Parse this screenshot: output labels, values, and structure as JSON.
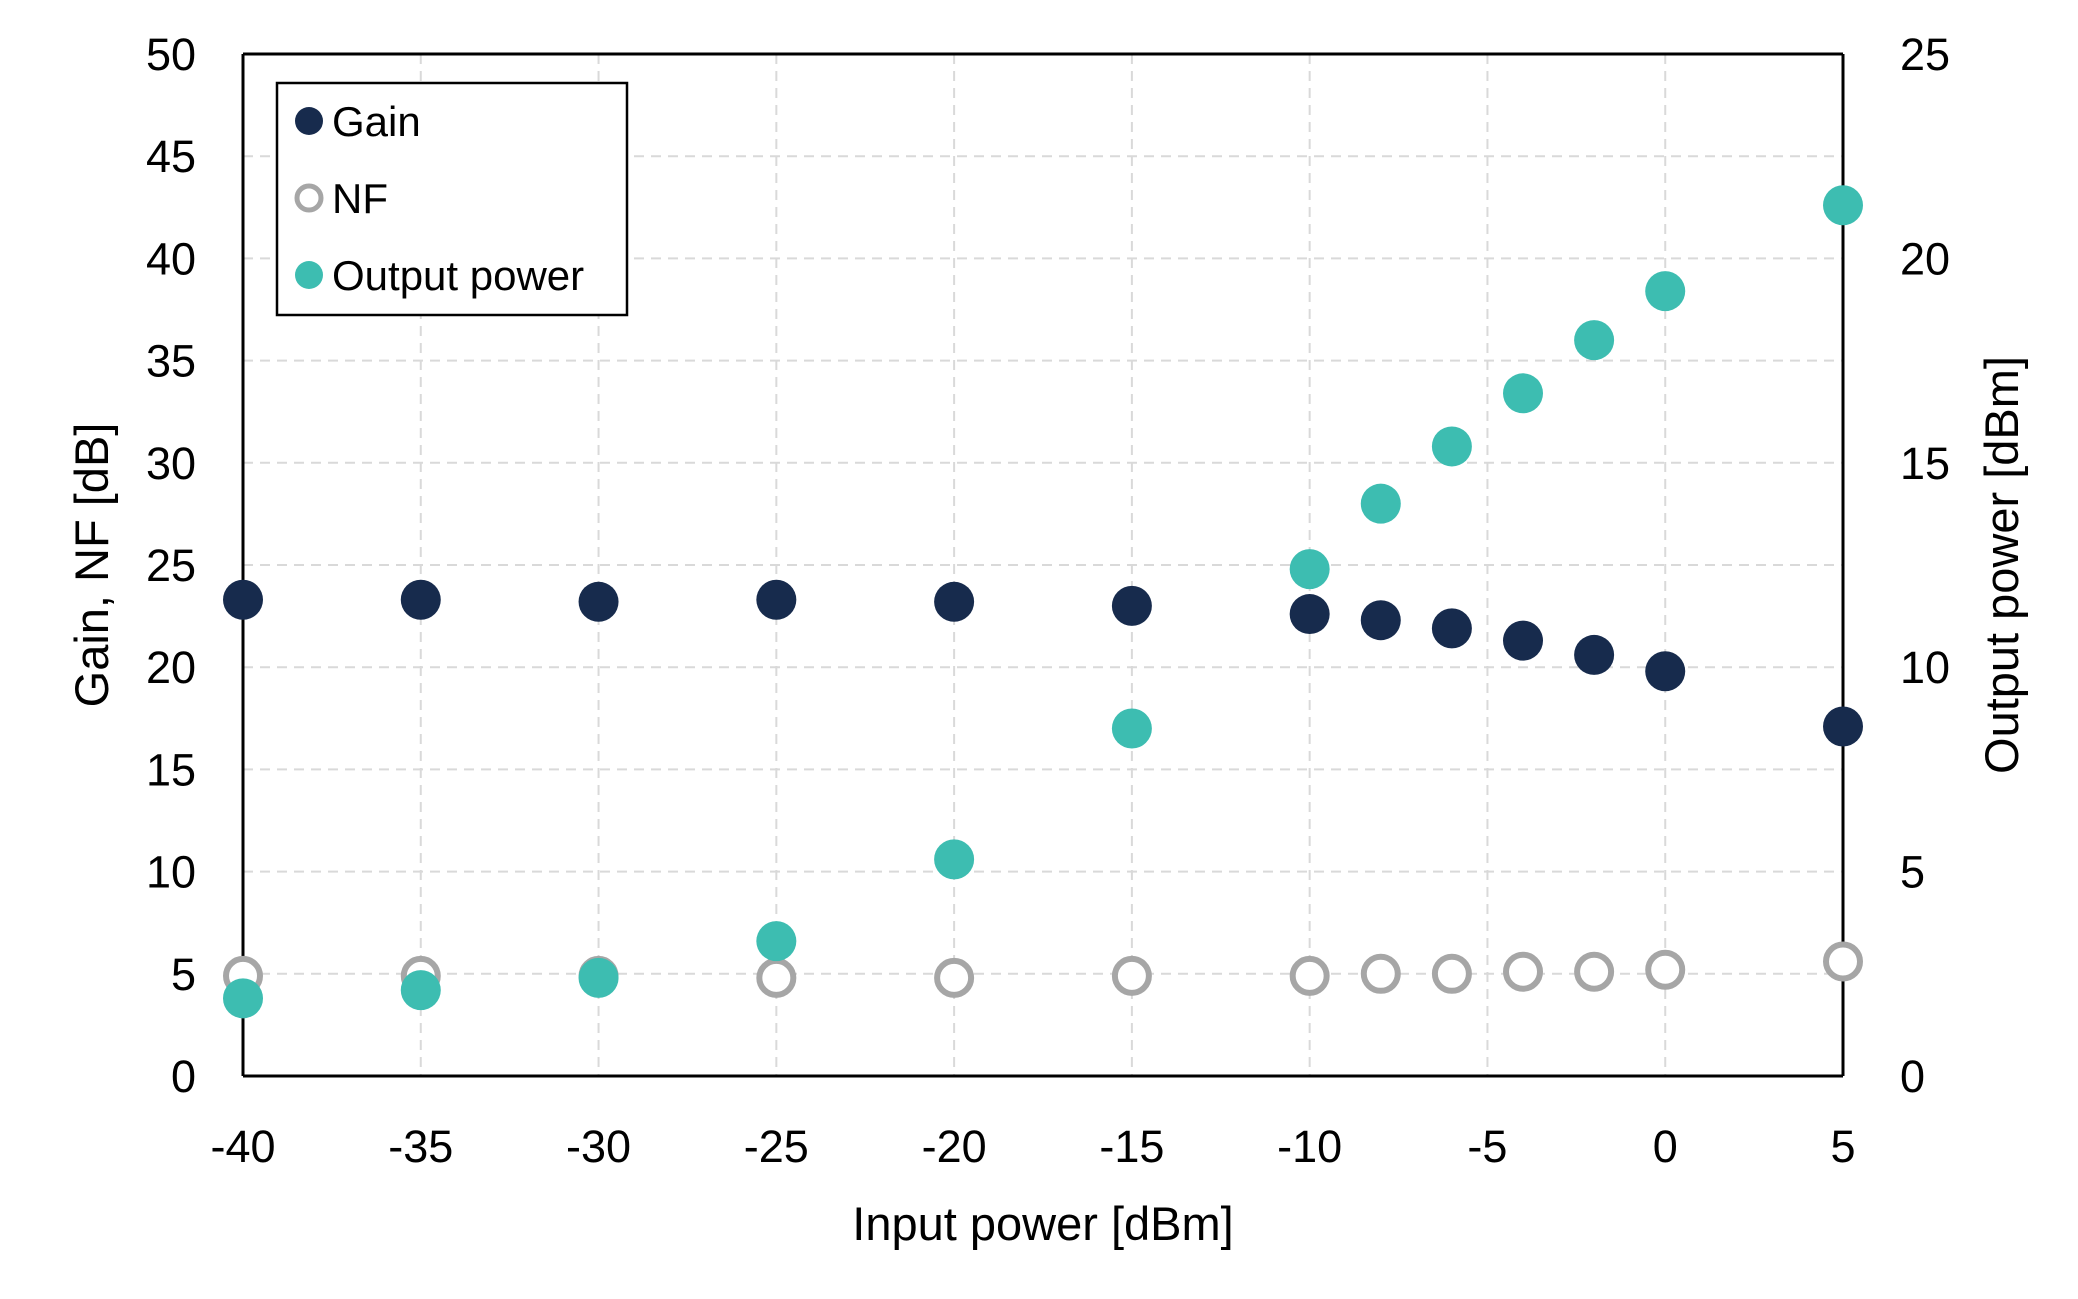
{
  "chart_data": {
    "type": "scatter",
    "title": "",
    "xlabel": "Input power [dBm]",
    "ylabel": "Gain, NF [dB]",
    "y2label": "Output power [dBm]",
    "xlim": [
      -40,
      5
    ],
    "ylim": [
      0,
      50
    ],
    "y2lim": [
      0,
      25
    ],
    "xticks": [
      "-40",
      "-35",
      "-30",
      "-25",
      "-20",
      "-15",
      "-10",
      "-5",
      "0",
      "5"
    ],
    "yticks": [
      "0",
      "5",
      "10",
      "15",
      "20",
      "25",
      "30",
      "35",
      "40",
      "45",
      "50"
    ],
    "y2ticks": [
      "0",
      "5",
      "10",
      "15",
      "20",
      "25"
    ],
    "grid": true,
    "legend_position": "top-left",
    "series": [
      {
        "name": "Gain",
        "axis": "left",
        "marker": "filled",
        "color": "#172b4d",
        "x": [
          -40,
          -35,
          -30,
          -25,
          -20,
          -15,
          -10,
          -8,
          -6,
          -4,
          -2,
          0,
          5
        ],
        "y": [
          23.3,
          23.3,
          23.2,
          23.3,
          23.2,
          23.0,
          22.6,
          22.3,
          21.9,
          21.3,
          20.6,
          19.8,
          17.1
        ]
      },
      {
        "name": "NF",
        "axis": "left",
        "marker": "hollow",
        "color": "#a6a6a6",
        "x": [
          -40,
          -35,
          -30,
          -25,
          -20,
          -15,
          -10,
          -8,
          -6,
          -4,
          -2,
          0,
          5
        ],
        "y": [
          4.9,
          4.9,
          4.9,
          4.8,
          4.8,
          4.9,
          4.9,
          5.0,
          5.0,
          5.1,
          5.1,
          5.2,
          5.6
        ]
      },
      {
        "name": "Output power",
        "axis": "right",
        "marker": "filled",
        "color": "#3dbdb1",
        "x": [
          -40,
          -35,
          -30,
          -25,
          -20,
          -15,
          -10,
          -8,
          -6,
          -4,
          -2,
          0,
          5
        ],
        "y": [
          1.9,
          2.1,
          2.4,
          3.3,
          5.3,
          8.5,
          12.4,
          14.0,
          15.4,
          16.7,
          18.0,
          19.2,
          21.3
        ]
      }
    ]
  }
}
